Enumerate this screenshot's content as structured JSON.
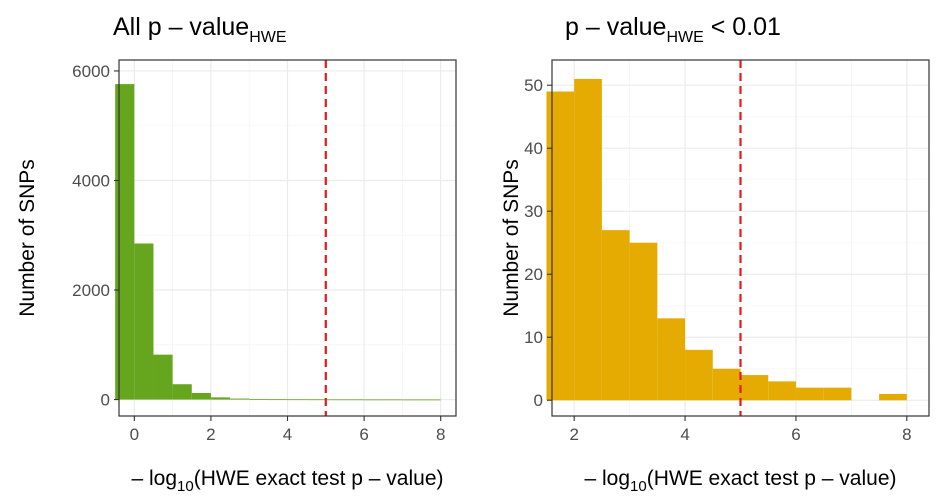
{
  "chart_data": [
    {
      "type": "bar",
      "title_main": "All p – value",
      "title_sub": "HWE",
      "title_tail": "",
      "ylabel": "Number of SNPs",
      "xlabel_prefix": "– log",
      "xlabel_sub": "10",
      "xlabel_rest": "(HWE exact test p – value)",
      "xlim": [
        -0.4,
        8.4
      ],
      "ylim": [
        -300,
        6200
      ],
      "xticks": [
        0,
        2,
        4,
        6,
        8
      ],
      "yticks": [
        0,
        2000,
        4000,
        6000
      ],
      "xtick_labels": [
        "0",
        "2",
        "4",
        "6",
        "8"
      ],
      "ytick_labels": [
        "0",
        "2000",
        "4000",
        "6000"
      ],
      "bin_width": 0.5,
      "bins": [
        -0.25,
        0.25,
        0.75,
        1.25,
        1.75,
        2.25,
        2.75,
        3.25,
        3.75,
        4.25,
        4.75,
        5.25,
        5.75,
        6.25,
        6.75,
        7.25,
        7.75
      ],
      "values": [
        5760,
        2850,
        820,
        280,
        120,
        40,
        18,
        10,
        6,
        5,
        4,
        3,
        3,
        2,
        2,
        1,
        1
      ],
      "bar_color": "#66a61e",
      "vline": 5,
      "vline_color": "#e41a1c"
    },
    {
      "type": "bar",
      "title_main": "p – value",
      "title_sub": "HWE",
      "title_tail": " < 0.01",
      "ylabel": "Number of SNPs",
      "xlabel_prefix": "– log",
      "xlabel_sub": "10",
      "xlabel_rest": "(HWE exact test p – value)",
      "xlim": [
        1.6,
        8.4
      ],
      "ylim": [
        -2.5,
        54
      ],
      "xticks": [
        2,
        4,
        6,
        8
      ],
      "yticks": [
        0,
        10,
        20,
        30,
        40,
        50
      ],
      "xtick_labels": [
        "2",
        "4",
        "6",
        "8"
      ],
      "ytick_labels": [
        "0",
        "10",
        "20",
        "30",
        "40",
        "50"
      ],
      "bin_width": 0.5,
      "bins": [
        1.75,
        2.25,
        2.75,
        3.25,
        3.75,
        4.25,
        4.75,
        5.25,
        5.75,
        6.25,
        6.75,
        7.25,
        7.75
      ],
      "values": [
        49,
        51,
        27,
        25,
        13,
        8,
        5,
        4,
        3,
        2,
        2,
        0,
        1
      ],
      "bar_color": "#e6ab02",
      "vline": 5,
      "vline_color": "#e41a1c"
    }
  ]
}
